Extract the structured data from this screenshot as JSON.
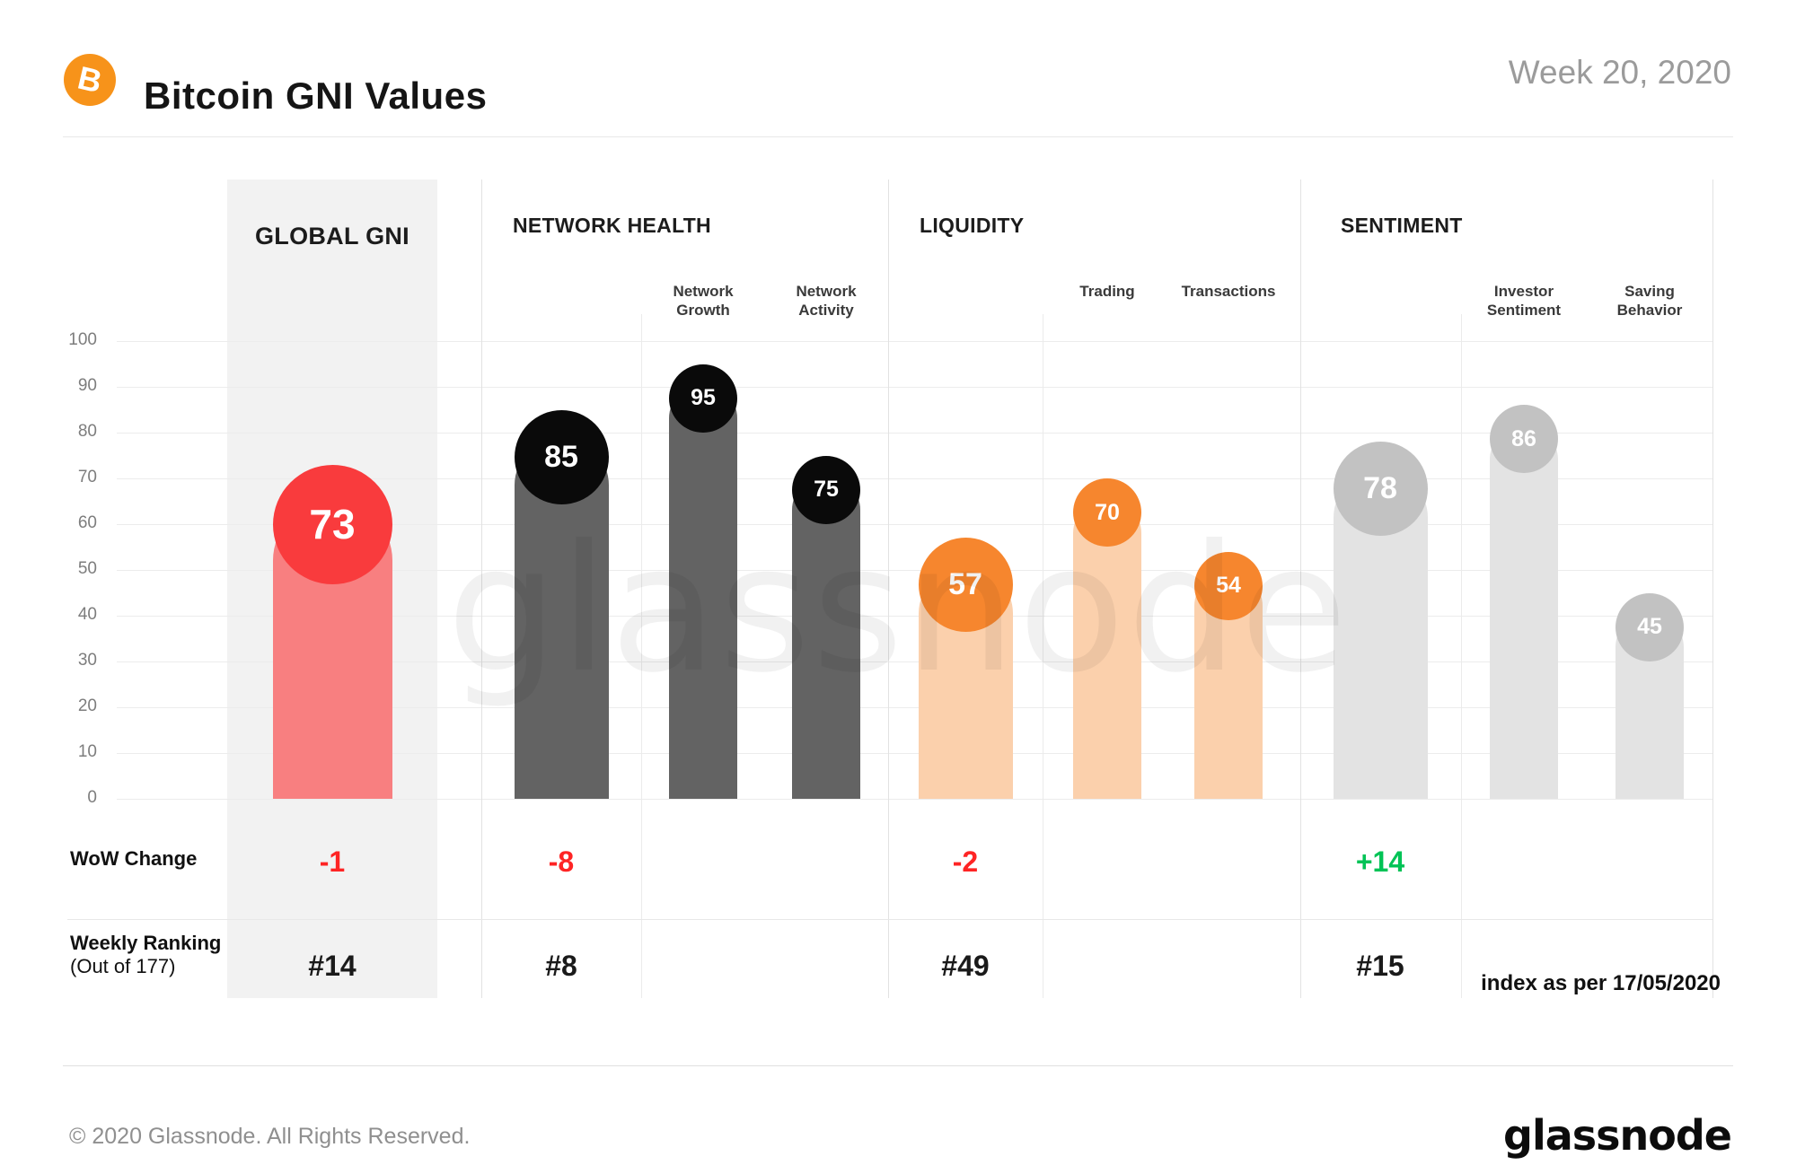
{
  "header": {
    "title": "Bitcoin GNI Values",
    "period": "Week 20, 2020",
    "bitcoin_glyph": "B"
  },
  "watermark": "glassnode",
  "labels": {
    "wow_change": "WoW Change",
    "weekly_ranking": "Weekly Ranking",
    "ranking_note": "(Out of 177)"
  },
  "index_note": "index as per 17/05/2020",
  "footer": {
    "copyright": "© 2020 Glassnode. All Rights Reserved.",
    "wordmark": "glassnode"
  },
  "colors": {
    "brand_orange": "#f7931a",
    "global_bar": "#f87f80",
    "global_circle": "#f93b3d",
    "network_bar": "#636363",
    "network_circle": "#0a0a0a",
    "liquidity_bar": "#fbd0ac",
    "liquidity_circle": "#f6862e",
    "sentiment_bar": "#e3e3e3",
    "sentiment_circle": "#c2c2c2",
    "negative": "#fe2424",
    "positive": "#00c356"
  },
  "chart_data": {
    "type": "bar",
    "title": "Bitcoin GNI Values",
    "period": "Week 20, 2020",
    "ylabel": "",
    "ylim": [
      0,
      100
    ],
    "yticks": [
      0,
      10,
      20,
      30,
      40,
      50,
      60,
      70,
      80,
      90,
      100
    ],
    "grid": true,
    "groups": [
      {
        "name": "GLOBAL GNI",
        "wow_change": "-1",
        "weekly_ranking": "#14",
        "bar_color": "#f87f80",
        "circle_color": "#f93b3d",
        "bars": [
          {
            "label": "Global GNI",
            "sublabel": "",
            "value": 73,
            "size": "hero"
          }
        ]
      },
      {
        "name": "NETWORK HEALTH",
        "wow_change": "-8",
        "weekly_ranking": "#8",
        "bar_color": "#636363",
        "circle_color": "#0a0a0a",
        "bars": [
          {
            "label": "Network Health",
            "sublabel": "",
            "value": 85,
            "size": "main"
          },
          {
            "label": "Network Growth",
            "sublabel": "Network Growth",
            "value": 95,
            "size": "sub"
          },
          {
            "label": "Network Activity",
            "sublabel": "Network Activity",
            "value": 75,
            "size": "sub"
          }
        ]
      },
      {
        "name": "LIQUIDITY",
        "wow_change": "-2",
        "weekly_ranking": "#49",
        "bar_color": "#fbd0ac",
        "circle_color": "#f6862e",
        "bars": [
          {
            "label": "Liquidity",
            "sublabel": "",
            "value": 57,
            "size": "main"
          },
          {
            "label": "Trading",
            "sublabel": "Trading",
            "value": 70,
            "size": "sub"
          },
          {
            "label": "Transactions",
            "sublabel": "Transactions",
            "value": 54,
            "size": "sub"
          }
        ]
      },
      {
        "name": "SENTIMENT",
        "wow_change": "+14",
        "weekly_ranking": "#15",
        "bar_color": "#e3e3e3",
        "circle_color": "#c2c2c2",
        "bars": [
          {
            "label": "Sentiment",
            "sublabel": "",
            "value": 78,
            "size": "main"
          },
          {
            "label": "Investor Sentiment",
            "sublabel": "Investor Sentiment",
            "value": 86,
            "size": "sub"
          },
          {
            "label": "Saving Behavior",
            "sublabel": "Saving Behavior",
            "value": 45,
            "size": "sub"
          }
        ]
      }
    ]
  }
}
